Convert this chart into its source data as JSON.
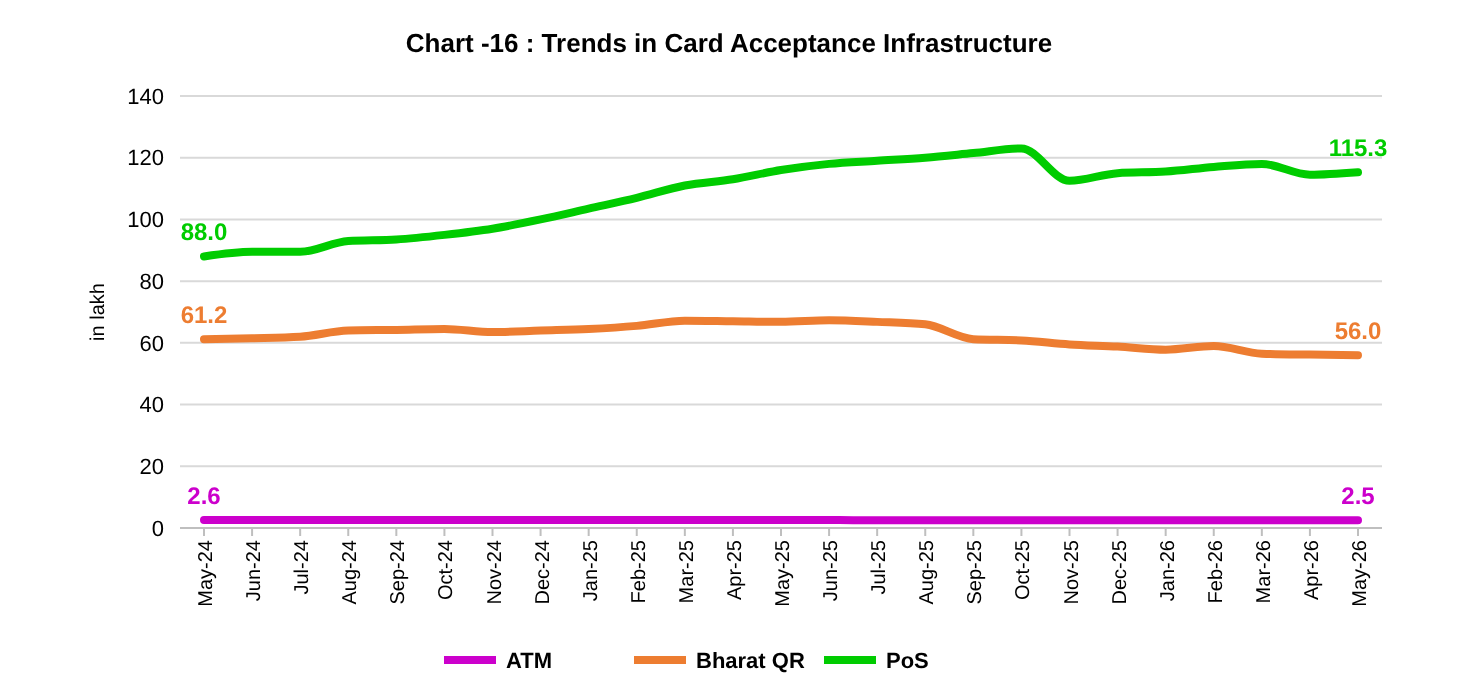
{
  "chart_data": {
    "type": "line",
    "title": "Chart -16 : Trends in Card Acceptance Infrastructure",
    "ylabel": "in lakh",
    "categories": [
      "May-24",
      "Jun-24",
      "Jul-24",
      "Aug-24",
      "Sep-24",
      "Oct-24",
      "Nov-24",
      "Dec-24",
      "Jan-25",
      "Feb-25",
      "Mar-25",
      "Apr-25",
      "May-25",
      "Jun-25",
      "Jul-25",
      "Aug-25",
      "Sep-25",
      "Oct-25",
      "Nov-25",
      "Dec-25",
      "Jan-26",
      "Feb-26",
      "Mar-26",
      "Apr-26",
      "May-26"
    ],
    "series": [
      {
        "name": "ATM",
        "color": "#cc00cc",
        "values": [
          2.6,
          2.6,
          2.6,
          2.6,
          2.6,
          2.6,
          2.6,
          2.6,
          2.6,
          2.6,
          2.6,
          2.6,
          2.6,
          2.6,
          2.5,
          2.5,
          2.5,
          2.5,
          2.5,
          2.5,
          2.5,
          2.5,
          2.5,
          2.5,
          2.5
        ],
        "value_labels": [
          "2.6",
          null,
          null,
          null,
          null,
          null,
          null,
          null,
          null,
          null,
          null,
          null,
          null,
          null,
          null,
          null,
          null,
          null,
          null,
          null,
          null,
          null,
          null,
          null,
          "2.5"
        ]
      },
      {
        "name": "Bharat QR",
        "color": "#ed7d31",
        "values": [
          61.2,
          61.5,
          62,
          64,
          64.2,
          64.5,
          63.5,
          64,
          64.5,
          65.5,
          67.2,
          67,
          66.8,
          67.3,
          66.8,
          66,
          61.2,
          60.8,
          59.5,
          58.8,
          57.8,
          59,
          56.5,
          56.2,
          56.0
        ],
        "value_labels": [
          "61.2",
          null,
          null,
          null,
          null,
          null,
          null,
          null,
          null,
          null,
          null,
          null,
          null,
          null,
          null,
          null,
          null,
          null,
          null,
          null,
          null,
          null,
          null,
          null,
          "56.0"
        ]
      },
      {
        "name": "PoS",
        "color": "#00cc00",
        "values": [
          88.0,
          89.5,
          89.5,
          93,
          93.5,
          95,
          97,
          100,
          103.5,
          107,
          111,
          113,
          116,
          118,
          119,
          120,
          121.5,
          123,
          112.5,
          115,
          115.5,
          117,
          118,
          114.5,
          115.3
        ],
        "value_labels": [
          "88.0",
          null,
          null,
          null,
          null,
          null,
          null,
          null,
          null,
          null,
          null,
          null,
          null,
          null,
          null,
          null,
          null,
          null,
          null,
          null,
          null,
          null,
          null,
          null,
          "115.3"
        ]
      }
    ],
    "ylim": [
      0,
      140
    ],
    "yticks": [
      0,
      20,
      40,
      60,
      80,
      100,
      120,
      140
    ],
    "grid": "y",
    "legend": "bottom"
  }
}
